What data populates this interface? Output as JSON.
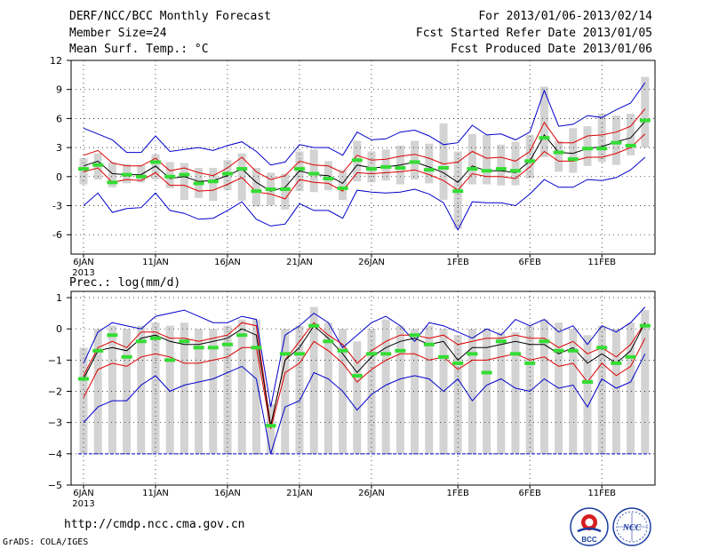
{
  "header": {
    "title": "DERF/NCC/BCC Monthly Forecast",
    "member_size": "Member Size=24",
    "variable": "Mean Surf. Temp.: °C",
    "period": "For 2013/01/06-2013/02/14",
    "started": "Fcst Started Refer Date 2013/01/05",
    "produced": "Fcst Produced Date 2013/01/06"
  },
  "footer": {
    "url": "http://cmdp.ncc.cma.gov.cn",
    "credit": "GrADS: COLA/IGES"
  },
  "logos": {
    "bcc": "BCC",
    "ncc": "NCC"
  },
  "colors": {
    "max_min": "#0000cc",
    "pct": "#dd0000",
    "mean": "#000000",
    "median": "#33dd33",
    "box": "#d3d3d3",
    "floor": "#0000cc"
  },
  "chart_data": [
    {
      "type": "line",
      "title": "",
      "ylabel": "Mean Surf. Temp.: °C",
      "ylim": [
        -8,
        12
      ],
      "yticks": [
        "12",
        "9",
        "6",
        "3",
        "0",
        "-3",
        "-6"
      ],
      "xlabels": [
        "6JAN",
        "11JAN",
        "16JAN",
        "21JAN",
        "26JAN",
        "1FEB",
        "6FEB",
        "11FEB"
      ],
      "year_label": "2013",
      "days": 40,
      "series": [
        {
          "name": "max",
          "values": [
            5,
            4.4,
            3.8,
            2.5,
            2.5,
            4.2,
            2.6,
            2.8,
            3,
            2.7,
            3.2,
            3.6,
            2.6,
            1.2,
            1.5,
            3.3,
            3,
            3,
            2.2,
            4.6,
            3.8,
            3.9,
            4.6,
            4.8,
            4.2,
            3.3,
            3.5,
            5.3,
            4.3,
            4.4,
            3.8,
            4.6,
            8.9,
            5.2,
            5.4,
            6.3,
            6.1,
            6.9,
            7.6,
            9.7
          ]
        },
        {
          "name": "p75",
          "values": [
            2.2,
            2.7,
            1.4,
            1.1,
            1.1,
            1.9,
            0.6,
            0.9,
            0.4,
            0.1,
            0.9,
            2,
            0.5,
            -0.3,
            0.1,
            1.6,
            1.2,
            1.1,
            0.4,
            2.2,
            1.7,
            1.8,
            2.1,
            2.3,
            1.9,
            1.3,
            1.5,
            2.6,
            1.9,
            2,
            1.6,
            2.6,
            5.6,
            3.5,
            3.5,
            4.2,
            4.3,
            4.6,
            5.2,
            7
          ]
        },
        {
          "name": "mean",
          "values": [
            1.1,
            1.6,
            0.3,
            0.2,
            0.2,
            1.1,
            -0.2,
            0,
            -0.5,
            -0.4,
            0.1,
            0.8,
            -0.6,
            -1.5,
            -1.1,
            0.6,
            0.2,
            0.1,
            -0.7,
            1.2,
            0.9,
            1,
            1.2,
            1.5,
            1,
            0.4,
            -0.6,
            1.1,
            0.6,
            0.6,
            0.4,
            1.6,
            4.3,
            2.5,
            2.4,
            2.9,
            3.1,
            3.6,
            4,
            5.7
          ]
        },
        {
          "name": "p25",
          "values": [
            0.5,
            0.9,
            -0.6,
            -0.3,
            -0.4,
            0.4,
            -0.9,
            -0.9,
            -1.5,
            -1.4,
            -0.8,
            -0.1,
            -1.6,
            -1.8,
            -2.3,
            -0.3,
            -0.6,
            -0.7,
            -1.5,
            0.4,
            0.3,
            0.4,
            0.5,
            0.7,
            0.2,
            -0.4,
            -1.4,
            0.3,
            0,
            0,
            -0.2,
            1,
            2.6,
            1.6,
            1.6,
            2,
            2,
            2.4,
            3,
            4.4
          ]
        },
        {
          "name": "min",
          "values": [
            -3,
            -1.7,
            -3.7,
            -3.3,
            -3.2,
            -1.7,
            -3.5,
            -3.8,
            -4.4,
            -4.3,
            -3.5,
            -2.6,
            -4.4,
            -5.1,
            -4.9,
            -2.8,
            -3.5,
            -3.5,
            -4.3,
            -1.4,
            -1.6,
            -1.7,
            -1.6,
            -1.3,
            -1.8,
            -2.7,
            -5.5,
            -2.6,
            -2.7,
            -2.7,
            -3,
            -1.8,
            -0.3,
            -1.1,
            -1.1,
            -0.3,
            -0.4,
            -0.1,
            0.7,
            2
          ]
        },
        {
          "name": "median",
          "values": [
            0.8,
            1.2,
            -0.6,
            0.2,
            0,
            1.5,
            0,
            0.2,
            -0.7,
            -0.5,
            0.3,
            0.8,
            -1.5,
            -1.3,
            -1.3,
            0.8,
            0.3,
            -0.2,
            -1.2,
            1.7,
            0.8,
            1,
            0.9,
            1.5,
            0.7,
            0.9,
            -1.5,
            0.8,
            0.6,
            0.8,
            0.6,
            1.6,
            4,
            2.5,
            1.8,
            2.9,
            2.9,
            3.5,
            3.2,
            5.8
          ]
        },
        {
          "name": "box_top",
          "values": [
            1.9,
            2.4,
            1.5,
            1.3,
            1.2,
            2.3,
            1.5,
            1.4,
            0.9,
            0.9,
            1.7,
            2.4,
            0.9,
            0.4,
            0.3,
            2.6,
            2.8,
            1.6,
            0.7,
            3.7,
            2.6,
            2.8,
            3.2,
            3.7,
            3.4,
            5.5,
            2.6,
            4.4,
            4.3,
            3.3,
            3.6,
            4.3,
            9.3,
            3.7,
            5,
            5.2,
            6.5,
            6.3,
            6.5,
            10.3
          ]
        },
        {
          "name": "box_bottom",
          "values": [
            -0.8,
            -0.3,
            -1.1,
            -0.7,
            -0.6,
            -0.3,
            -1.2,
            -2.4,
            -2.2,
            -2.5,
            -1.4,
            -2.5,
            -3.1,
            -3,
            -3.4,
            -1.5,
            -1.6,
            -1.4,
            -2.4,
            -0.5,
            -0.6,
            -0.4,
            -0.8,
            -0.3,
            -0.7,
            -2.4,
            -5.4,
            -0.8,
            -0.8,
            -0.9,
            -0.9,
            -0.2,
            2,
            0.5,
            0.4,
            1.1,
            1.5,
            1.2,
            2.2,
            3
          ]
        }
      ]
    },
    {
      "type": "line",
      "title": "Prec.: log(mm/d)",
      "ylabel": "Prec.: log(mm/d)",
      "ylim": [
        -5,
        1.2
      ],
      "yticks": [
        "1",
        "0",
        "−1",
        "−2",
        "−3",
        "−4",
        "−5"
      ],
      "xlabels": [
        "6JAN",
        "11JAN",
        "16JAN",
        "21JAN",
        "26JAN",
        "1FEB",
        "6FEB",
        "11FEB"
      ],
      "year_label": "2013",
      "days": 40,
      "floor": -4,
      "series": [
        {
          "name": "max",
          "values": [
            -1.1,
            -0.1,
            0.2,
            0.1,
            0,
            0.4,
            0.5,
            0.6,
            0.4,
            0.2,
            0.2,
            0.4,
            0.3,
            -2.5,
            -0.2,
            0.1,
            0.5,
            0.2,
            -0.6,
            -0.2,
            0.2,
            0.4,
            0.1,
            -0.4,
            0.2,
            0.1,
            -0.1,
            -0.3,
            0,
            -0.2,
            0.3,
            0.1,
            0.3,
            -0.1,
            0.1,
            -0.5,
            0.1,
            -0.1,
            0.2,
            0.7
          ]
        },
        {
          "name": "p75",
          "values": [
            -1.5,
            -0.6,
            -0.4,
            -0.6,
            -0.1,
            -0.1,
            -0.3,
            -0.3,
            -0.4,
            -0.3,
            -0.2,
            0.2,
            0.1,
            -3.1,
            -1,
            -0.4,
            0.2,
            -0.2,
            -0.5,
            -1.1,
            -0.7,
            -0.4,
            -0.2,
            -0.2,
            -0.3,
            -0.2,
            -0.5,
            -0.4,
            -0.3,
            -0.3,
            -0.2,
            -0.3,
            -0.3,
            -0.6,
            -0.4,
            -0.8,
            -0.6,
            -0.9,
            -0.5,
            0.2
          ]
        },
        {
          "name": "mean",
          "values": [
            -1.6,
            -0.7,
            -0.6,
            -0.7,
            -0.3,
            -0.2,
            -0.4,
            -0.5,
            -0.5,
            -0.4,
            -0.3,
            0,
            -0.2,
            -3.1,
            -1,
            -0.6,
            0.1,
            -0.3,
            -0.8,
            -1.4,
            -0.9,
            -0.6,
            -0.4,
            -0.3,
            -0.5,
            -0.4,
            -1,
            -0.6,
            -0.6,
            -0.5,
            -0.4,
            -0.5,
            -0.5,
            -0.8,
            -0.6,
            -1.1,
            -0.8,
            -1.1,
            -0.7,
            0.2
          ]
        },
        {
          "name": "p25",
          "values": [
            -2.2,
            -1.3,
            -1.1,
            -1.2,
            -0.9,
            -0.8,
            -0.9,
            -1.1,
            -1.1,
            -1,
            -0.9,
            -0.6,
            -0.6,
            -3.2,
            -1.4,
            -1.1,
            -0.4,
            -0.7,
            -1.1,
            -1.7,
            -1.3,
            -1,
            -0.8,
            -0.8,
            -1,
            -0.9,
            -1.3,
            -1,
            -1,
            -0.9,
            -0.8,
            -1,
            -0.9,
            -1.2,
            -1.1,
            -1.7,
            -1.1,
            -1.5,
            -1.2,
            -0.3
          ]
        },
        {
          "name": "min",
          "values": [
            -3,
            -2.5,
            -2.3,
            -2.3,
            -1.8,
            -1.5,
            -2,
            -1.8,
            -1.7,
            -1.6,
            -1.4,
            -1.2,
            -1.6,
            -4,
            -2.5,
            -2.3,
            -1.4,
            -1.6,
            -2,
            -2.6,
            -2.1,
            -1.8,
            -1.6,
            -1.5,
            -1.6,
            -2,
            -1.6,
            -2.3,
            -1.8,
            -1.6,
            -1.9,
            -2,
            -1.6,
            -1.9,
            -1.8,
            -2.5,
            -1.6,
            -1.9,
            -1.7,
            -0.8
          ]
        },
        {
          "name": "median",
          "values": [
            -1.6,
            -0.7,
            -0.2,
            -0.9,
            -0.4,
            -0.3,
            -1,
            -0.4,
            -0.6,
            -0.6,
            -0.5,
            -0.2,
            -0.6,
            -3.1,
            -0.8,
            -0.8,
            0.1,
            -0.4,
            -0.7,
            -1.5,
            -0.8,
            -0.8,
            -0.7,
            -0.2,
            -0.5,
            -0.9,
            -1.1,
            -0.8,
            -1.4,
            -0.4,
            -0.8,
            -1.1,
            -0.4,
            -0.7,
            -0.7,
            -1.7,
            -0.6,
            -1.1,
            -0.9,
            0.1
          ]
        },
        {
          "name": "box_top",
          "values": [
            -0.6,
            0,
            0.1,
            0,
            0.1,
            0.2,
            0.1,
            0.2,
            0,
            0,
            0.1,
            0.3,
            0.3,
            -2.4,
            0,
            0.1,
            0.7,
            0.2,
            0,
            -0.4,
            0,
            0.3,
            0.1,
            0,
            0.1,
            0,
            -0.2,
            0,
            0,
            -0.1,
            -0.1,
            0.1,
            0.3,
            0.2,
            0,
            -0.2,
            0.1,
            0,
            0.2,
            0.6
          ]
        },
        {
          "name": "box_bottom",
          "values": [
            -4,
            -4,
            -4,
            -4,
            -4,
            -4,
            -4,
            -4,
            -4,
            -4,
            -4,
            -4,
            -4,
            -4,
            -4,
            -4,
            -4,
            -4,
            -4,
            -4,
            -4,
            -4,
            -4,
            -4,
            -4,
            -4,
            -4,
            -4,
            -4,
            -4,
            -4,
            -4,
            -4,
            -4,
            -4,
            -4,
            -4,
            -4,
            -4,
            -4
          ]
        }
      ]
    }
  ]
}
